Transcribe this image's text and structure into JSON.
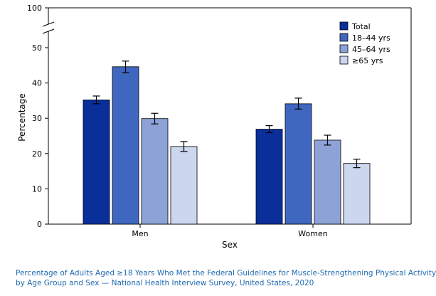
{
  "chart_data": {
    "type": "bar",
    "xlabel": "Sex",
    "ylabel": "Percentage",
    "categories": [
      "Men",
      "Women"
    ],
    "ylim": [
      0,
      100
    ],
    "axis_break": [
      55,
      95
    ],
    "y_ticks": [
      "0",
      "10",
      "20",
      "30",
      "40",
      "50",
      "100"
    ],
    "legend_position": "top-right",
    "series": [
      {
        "name": "Total",
        "color": "#0a2f9b",
        "values": [
          35.2,
          26.9
        ],
        "error_low": [
          34.1,
          25.9
        ],
        "error_high": [
          36.3,
          27.9
        ]
      },
      {
        "name": "18–44 yrs",
        "color": "#3f67c0",
        "values": [
          44.6,
          34.1
        ],
        "error_low": [
          42.9,
          32.6
        ],
        "error_high": [
          46.2,
          35.7
        ]
      },
      {
        "name": "45–64 yrs",
        "color": "#8da3d8",
        "values": [
          29.9,
          23.8
        ],
        "error_low": [
          28.4,
          22.4
        ],
        "error_high": [
          31.4,
          25.2
        ]
      },
      {
        "name": "≥65 yrs",
        "color": "#cdd6ef",
        "values": [
          22.0,
          17.2
        ],
        "error_low": [
          20.6,
          16.0
        ],
        "error_high": [
          23.4,
          18.4
        ]
      }
    ]
  },
  "caption": {
    "line1": "Percentage of Adults Aged ≥18 Years Who Met the Federal Guidelines for Muscle-Strengthening Physical Activity,",
    "line2": "by Age Group and Sex — National Health Interview Survey, United States, 2020"
  }
}
